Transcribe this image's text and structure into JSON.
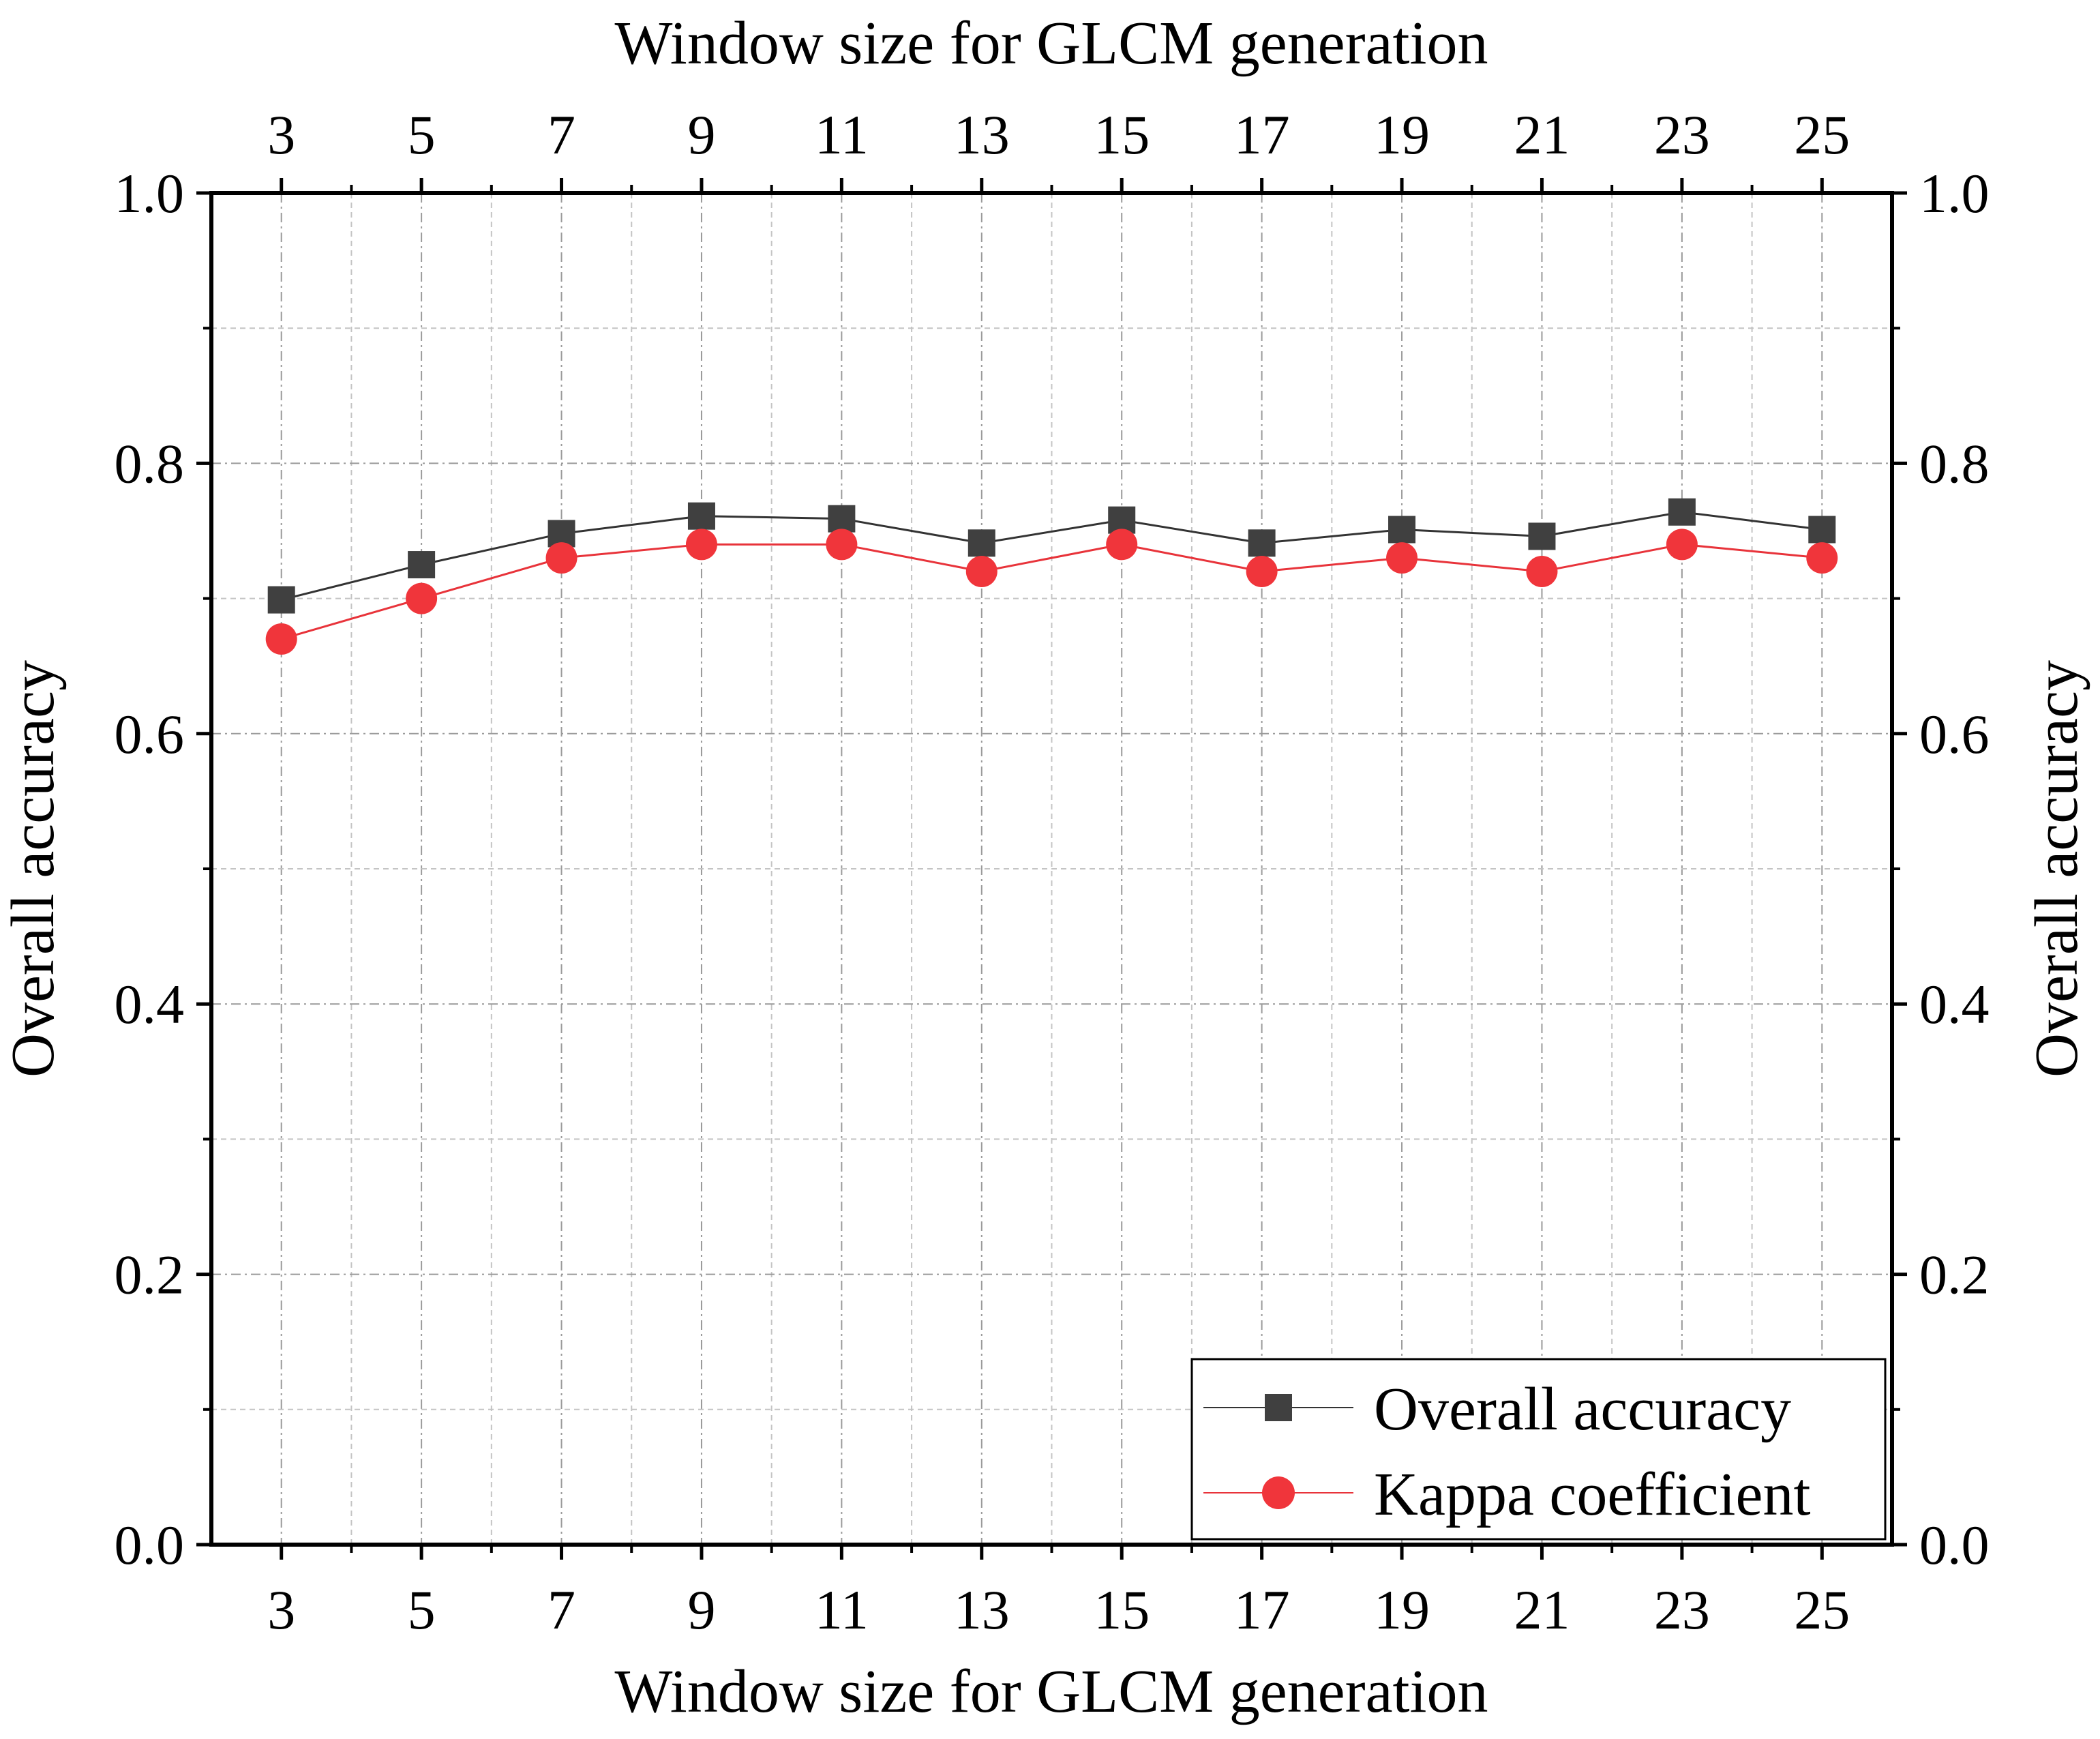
{
  "chart_data": {
    "type": "line",
    "title": "",
    "xlabel": "Window size for GLCM generation",
    "x2label": "Window size for GLCM generation",
    "ylabel": "Overall accuracy",
    "y2label": "Overall accuracy",
    "x": [
      3,
      5,
      7,
      9,
      11,
      13,
      15,
      17,
      19,
      21,
      23,
      25
    ],
    "x_tick_labels": [
      "3",
      "5",
      "7",
      "9",
      "11",
      "13",
      "15",
      "17",
      "19",
      "21",
      "23",
      "25"
    ],
    "xlim": [
      2,
      26
    ],
    "ylim": [
      0.0,
      1.0
    ],
    "y_tick_labels": [
      "0.0",
      "0.2",
      "0.4",
      "0.6",
      "0.8",
      "1.0"
    ],
    "y_ticks": [
      0.0,
      0.2,
      0.4,
      0.6,
      0.8,
      1.0
    ],
    "grid": true,
    "legend_position": "bottom-right",
    "series": [
      {
        "name": "Overall accuracy",
        "marker": "square",
        "color": "#404040",
        "line_color": "#333333",
        "values": [
          0.699,
          0.725,
          0.748,
          0.761,
          0.759,
          0.741,
          0.758,
          0.741,
          0.751,
          0.746,
          0.764,
          0.751
        ]
      },
      {
        "name": "Kappa coefficient",
        "marker": "circle",
        "color": "#f0353b",
        "line_color": "#e8333a",
        "values": [
          0.67,
          0.7,
          0.73,
          0.74,
          0.74,
          0.72,
          0.74,
          0.72,
          0.73,
          0.72,
          0.74,
          0.73
        ]
      }
    ]
  }
}
